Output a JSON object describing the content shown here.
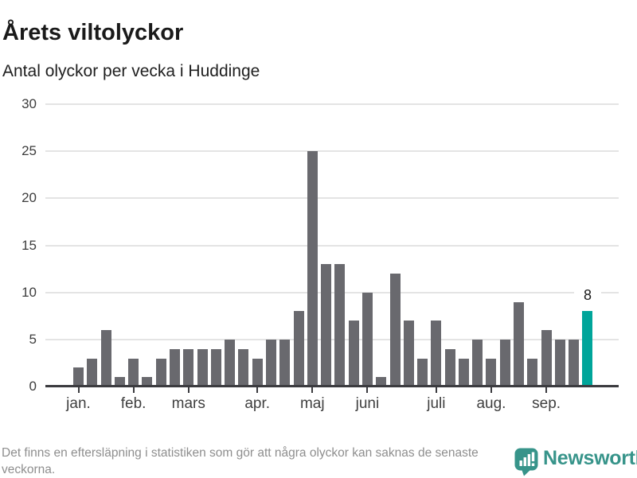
{
  "header": {
    "title": "Årets viltolyckor",
    "subtitle": "Antal olyckor per vecka i Huddinge"
  },
  "chart_data": {
    "type": "bar",
    "title": "Årets viltolyckor",
    "subtitle": "Antal olyckor per vecka i Huddinge",
    "x_unit": "week",
    "values": [
      2,
      3,
      6,
      1,
      3,
      1,
      3,
      4,
      4,
      4,
      4,
      5,
      4,
      3,
      5,
      5,
      8,
      25,
      13,
      13,
      7,
      10,
      1,
      12,
      7,
      3,
      7,
      4,
      3,
      5,
      3,
      5,
      9,
      3,
      6,
      5,
      5,
      8
    ],
    "month_ticks": [
      {
        "week": 1,
        "label": "jan."
      },
      {
        "week": 5,
        "label": "feb."
      },
      {
        "week": 9,
        "label": "mars"
      },
      {
        "week": 14,
        "label": "apr."
      },
      {
        "week": 18,
        "label": "maj"
      },
      {
        "week": 22,
        "label": "juni"
      },
      {
        "week": 27,
        "label": "juli"
      },
      {
        "week": 31,
        "label": "aug."
      },
      {
        "week": 35,
        "label": "sep."
      }
    ],
    "y_ticks": [
      0,
      5,
      10,
      15,
      20,
      25,
      30
    ],
    "ylim": [
      0,
      30
    ],
    "grid": true,
    "legend": "none",
    "highlight_last_bar": true,
    "highlight_value_label": "8",
    "colors": {
      "bar": "#69696e",
      "highlight": "#00a59a",
      "grid": "#e4e4e4",
      "axis": "#3b3b3f"
    }
  },
  "footer": {
    "note": "Det finns en eftersläpning i statistiken som gör att några olyckor kan saknas de senaste veckorna.",
    "brand_name": "Newsworthy",
    "brand_color": "#37948a"
  }
}
